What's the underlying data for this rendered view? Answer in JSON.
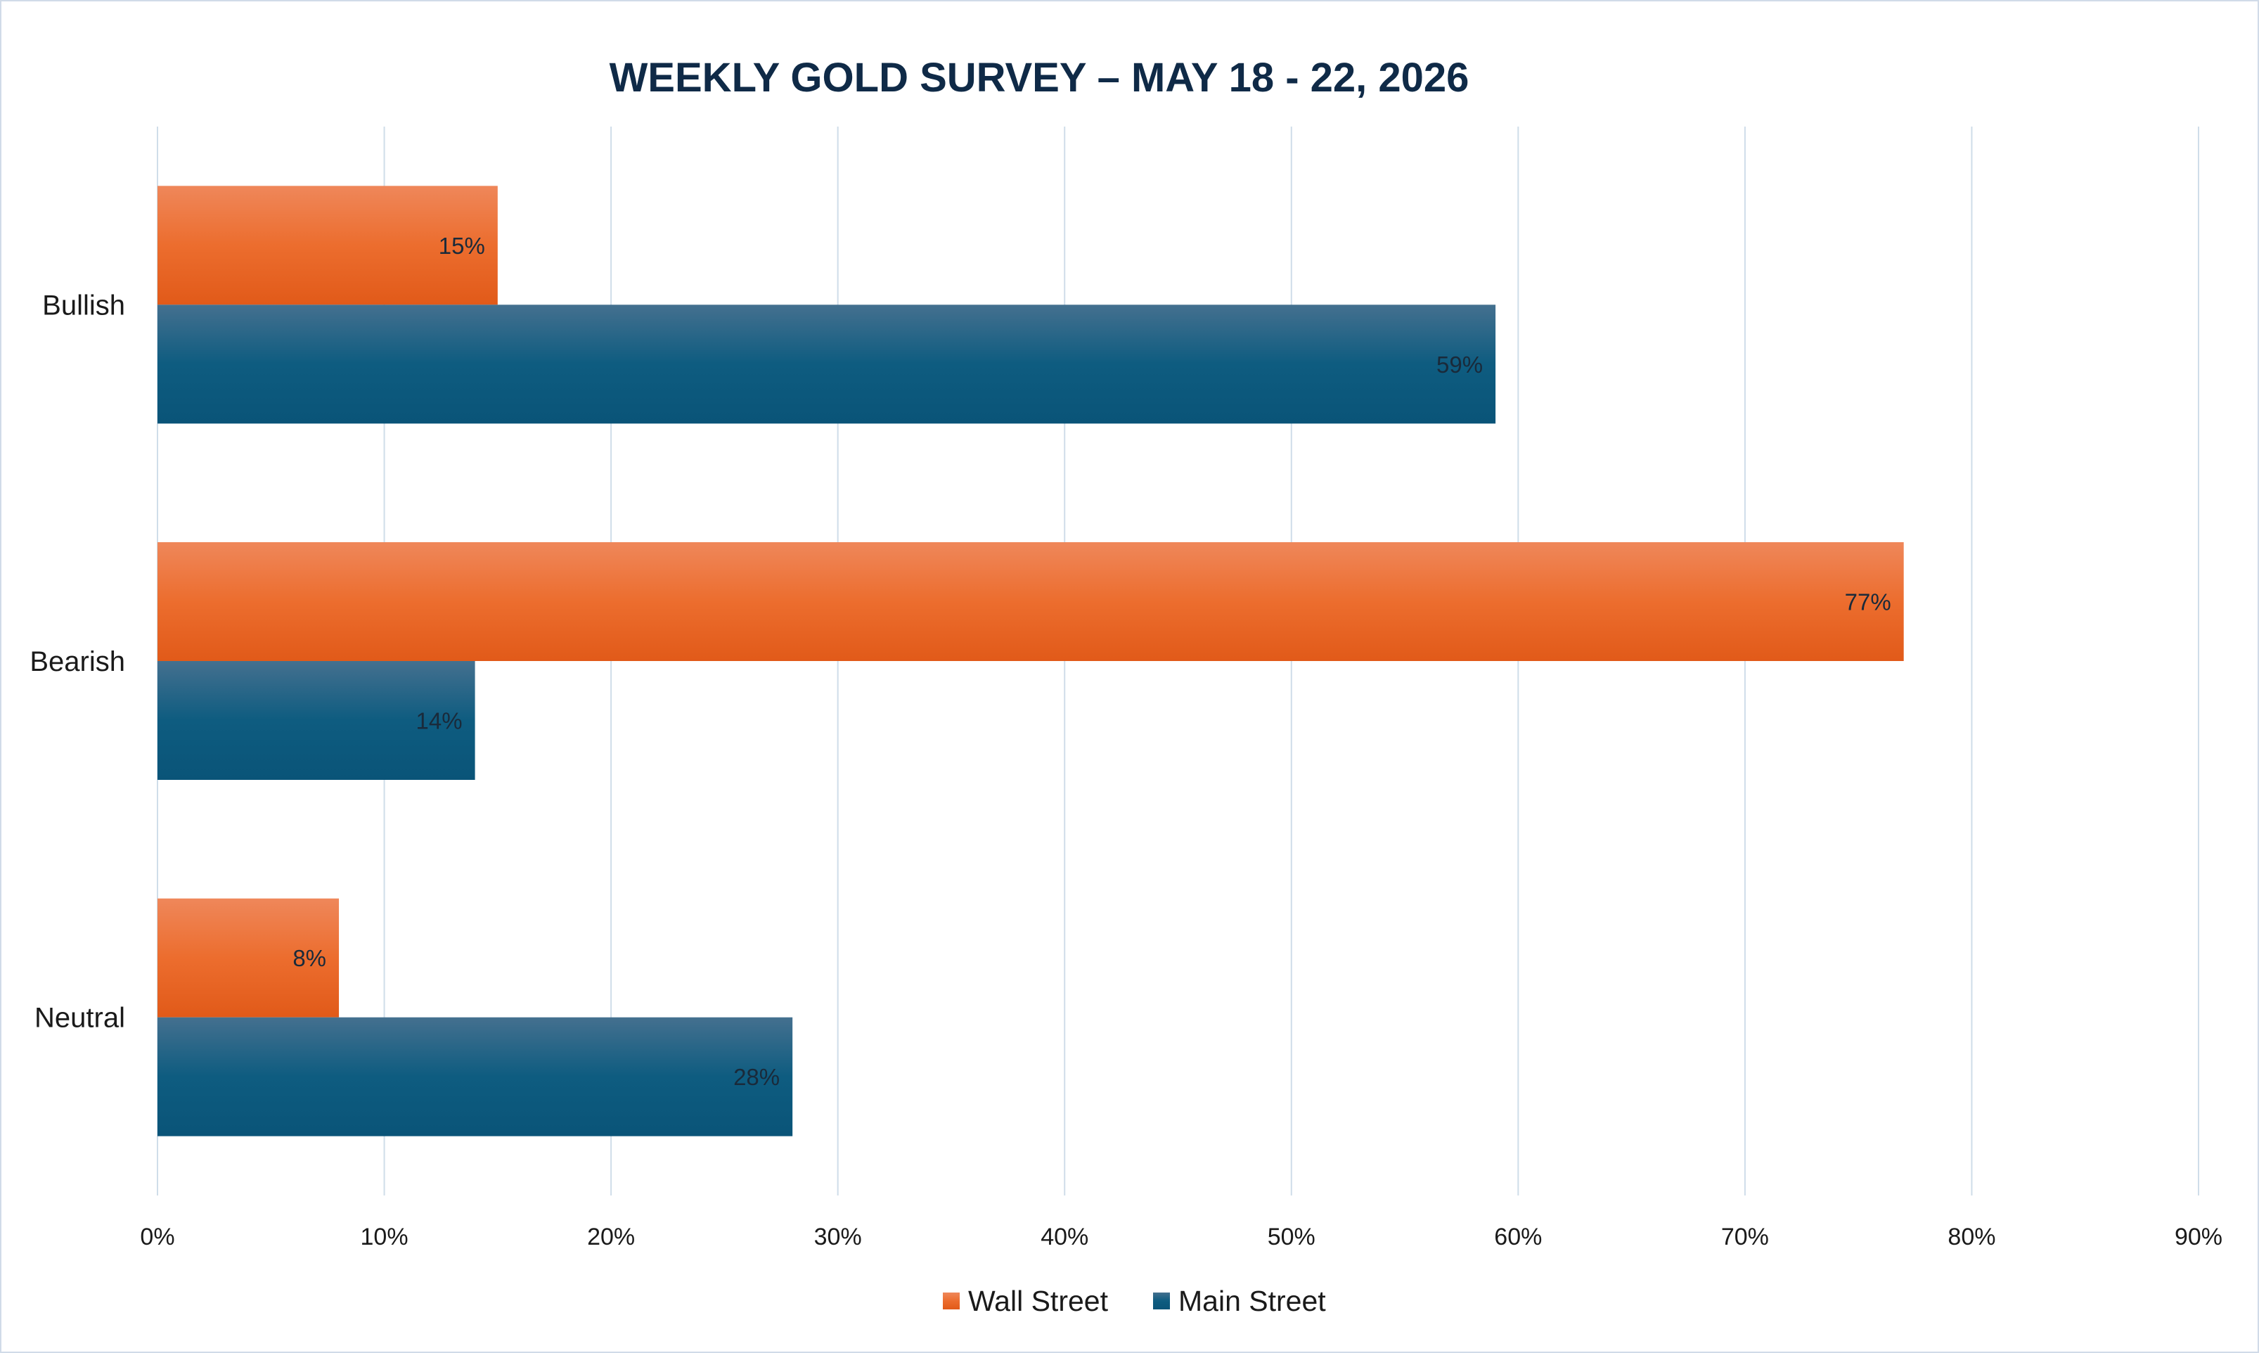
{
  "chart_data": {
    "type": "bar",
    "orientation": "horizontal",
    "title": "WEEKLY GOLD SURVEY – MAY 18 - 22, 2026",
    "categories": [
      "Bullish",
      "Bearish",
      "Neutral"
    ],
    "series": [
      {
        "name": "Wall Street",
        "values": [
          15,
          77,
          8
        ],
        "labels": [
          "15%",
          "77%",
          "8%"
        ],
        "color": "#ec6a2c"
      },
      {
        "name": "Main Street",
        "values": [
          59,
          14,
          28
        ],
        "labels": [
          "59%",
          "14%",
          "28%"
        ],
        "color": "#0e5a7e"
      }
    ],
    "xlim": [
      0,
      90
    ],
    "xticks": [
      0,
      10,
      20,
      30,
      40,
      50,
      60,
      70,
      80,
      90
    ],
    "xtick_labels": [
      "0%",
      "10%",
      "20%",
      "30%",
      "40%",
      "50%",
      "60%",
      "70%",
      "80%",
      "90%"
    ],
    "grid": "vertical",
    "legend": "bottom-center"
  }
}
